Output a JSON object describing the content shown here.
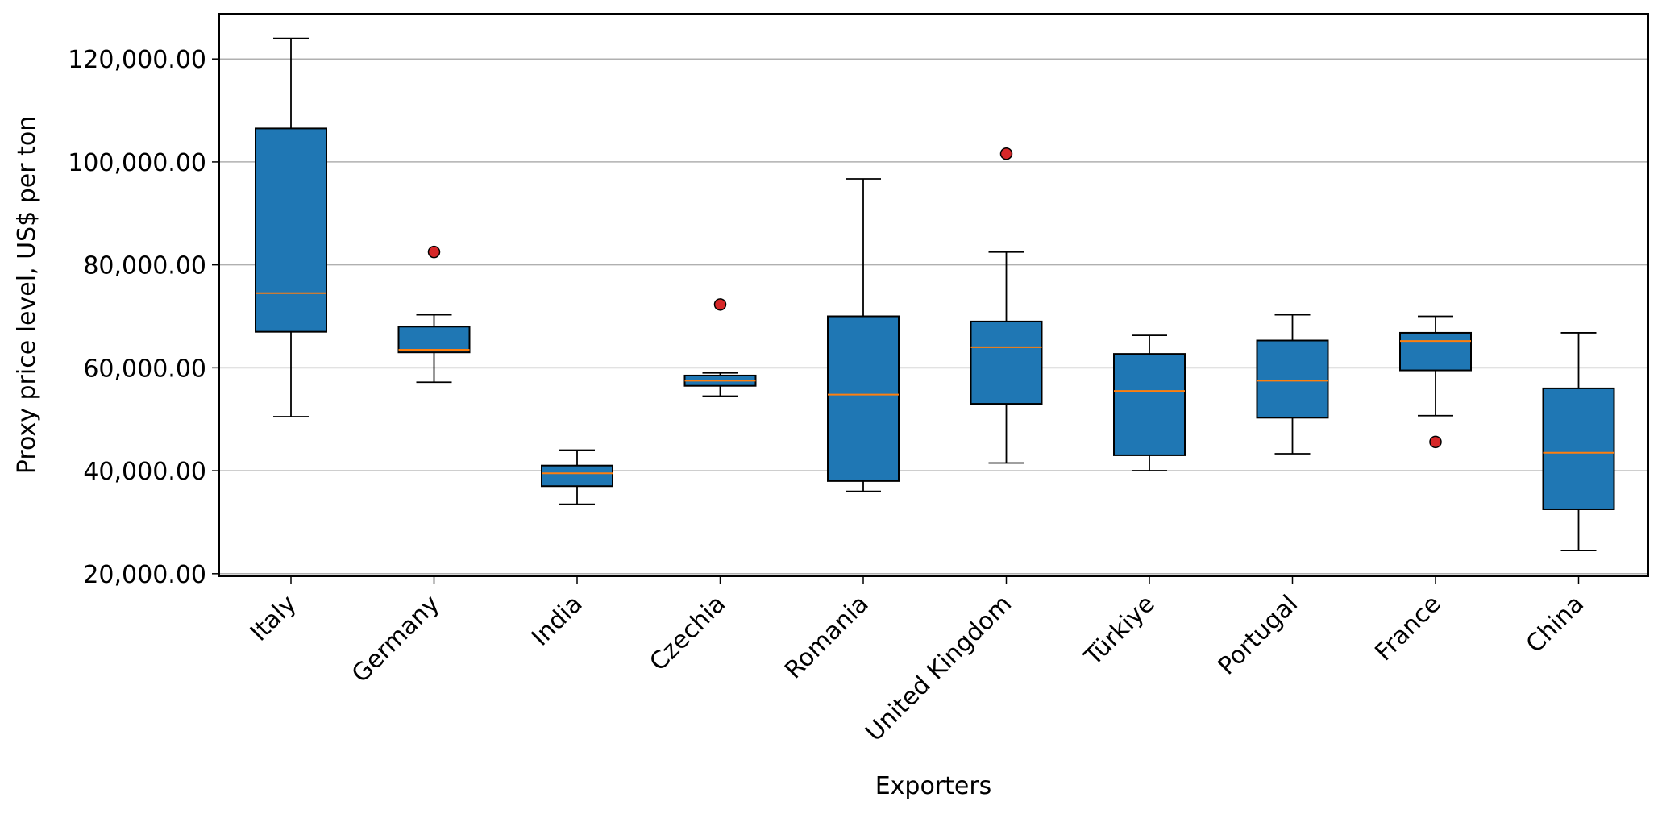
{
  "chart_data": {
    "type": "box",
    "title": "",
    "xlabel": "Exporters",
    "ylabel": "Proxy price level, US$ per ton",
    "ylim": [
      19500,
      128800
    ],
    "yticks": [
      {
        "value": 20000,
        "label": "20,000.00"
      },
      {
        "value": 40000,
        "label": "40,000.00"
      },
      {
        "value": 60000,
        "label": "60,000.00"
      },
      {
        "value": 80000,
        "label": "80,000.00"
      },
      {
        "value": 100000,
        "label": "100,000.00"
      },
      {
        "value": 120000,
        "label": "120,000.00"
      }
    ],
    "grid": "horizontal",
    "colors": {
      "box": "#1f77b4",
      "median": "#ff7f0e",
      "outlier": "#d62728",
      "grid": "#b0b0b0"
    },
    "categories": [
      "Italy",
      "Germany",
      "India",
      "Czechia",
      "Romania",
      "United Kingdom",
      "Türkiye",
      "Portugal",
      "France",
      "China"
    ],
    "boxes": [
      {
        "whisker_low": 50500,
        "q1": 67000,
        "median": 74500,
        "q3": 106500,
        "whisker_high": 124000,
        "outliers": []
      },
      {
        "whisker_low": 57200,
        "q1": 63000,
        "median": 63500,
        "q3": 68000,
        "whisker_high": 70300,
        "outliers": [
          82500
        ]
      },
      {
        "whisker_low": 33500,
        "q1": 37000,
        "median": 39500,
        "q3": 41000,
        "whisker_high": 44000,
        "outliers": []
      },
      {
        "whisker_low": 54500,
        "q1": 56500,
        "median": 57500,
        "q3": 58500,
        "whisker_high": 59000,
        "outliers": [
          72300
        ]
      },
      {
        "whisker_low": 36000,
        "q1": 38000,
        "median": 54800,
        "q3": 70000,
        "whisker_high": 96700,
        "outliers": []
      },
      {
        "whisker_low": 41500,
        "q1": 53000,
        "median": 64000,
        "q3": 69000,
        "whisker_high": 82500,
        "outliers": [
          101600
        ]
      },
      {
        "whisker_low": 40000,
        "q1": 43000,
        "median": 55500,
        "q3": 62700,
        "whisker_high": 66300,
        "outliers": []
      },
      {
        "whisker_low": 43300,
        "q1": 50300,
        "median": 57500,
        "q3": 65300,
        "whisker_high": 70300,
        "outliers": []
      },
      {
        "whisker_low": 50700,
        "q1": 59500,
        "median": 65200,
        "q3": 66800,
        "whisker_high": 70000,
        "outliers": [
          45600
        ]
      },
      {
        "whisker_low": 24500,
        "q1": 32500,
        "median": 43500,
        "q3": 56000,
        "whisker_high": 66800,
        "outliers": []
      }
    ]
  }
}
